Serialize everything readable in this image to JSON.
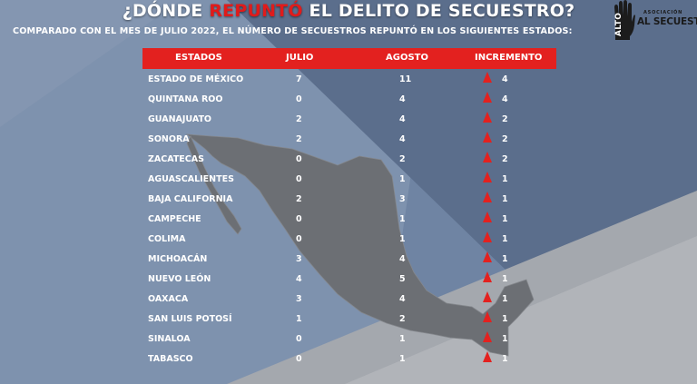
{
  "title": {
    "part1": "¿DÓNDE ",
    "highlight": "REPUNTÓ",
    "part2": " EL DELITO DE SECUESTRO?"
  },
  "subtitle": "COMPARADO CON EL MES DE JULIO 2022, EL NÚMERO DE SECUESTROS REPUNTÓ EN LOS SIGUIENTES  ESTADOS:",
  "logo": {
    "association": "ASOCIACIÓN",
    "alto": "ALTO",
    "secuestro": "AL SECUESTRO",
    "icon": "stop-hand-icon"
  },
  "colors": {
    "header_red": "#e3211f",
    "highlight_red": "#e01b1b",
    "text": "#ffffff"
  },
  "table": {
    "headers": {
      "state": "ESTADOS",
      "july": "JULIO",
      "august": "AGOSTO",
      "increase": "INCREMENTO"
    },
    "rows": [
      {
        "state": "ESTADO DE MÉXICO",
        "july": "7",
        "august": "11",
        "increase": "4"
      },
      {
        "state": "QUINTANA ROO",
        "july": "0",
        "august": "4",
        "increase": "4"
      },
      {
        "state": "GUANAJUATO",
        "july": "2",
        "august": "4",
        "increase": "2"
      },
      {
        "state": "SONORA",
        "july": "2",
        "august": "4",
        "increase": "2"
      },
      {
        "state": "ZACATECAS",
        "july": "0",
        "august": "2",
        "increase": "2"
      },
      {
        "state": "AGUASCALIENTES",
        "july": "0",
        "august": "1",
        "increase": "1"
      },
      {
        "state": "BAJA CALIFORNIA",
        "july": "2",
        "august": "3",
        "increase": "1"
      },
      {
        "state": "CAMPECHE",
        "july": "0",
        "august": "1",
        "increase": "1"
      },
      {
        "state": "COLIMA",
        "july": "0",
        "august": "1",
        "increase": "1"
      },
      {
        "state": "MICHOACÁN",
        "july": "3",
        "august": "4",
        "increase": "1"
      },
      {
        "state": "NUEVO LEÓN",
        "july": "4",
        "august": "5",
        "increase": "1"
      },
      {
        "state": "OAXACA",
        "july": "3",
        "august": "4",
        "increase": "1"
      },
      {
        "state": "SAN LUIS POTOSÍ",
        "july": "1",
        "august": "2",
        "increase": "1"
      },
      {
        "state": "SINALOA",
        "july": "0",
        "august": "1",
        "increase": "1"
      },
      {
        "state": "TABASCO",
        "july": "0",
        "august": "1",
        "increase": "1"
      }
    ]
  }
}
